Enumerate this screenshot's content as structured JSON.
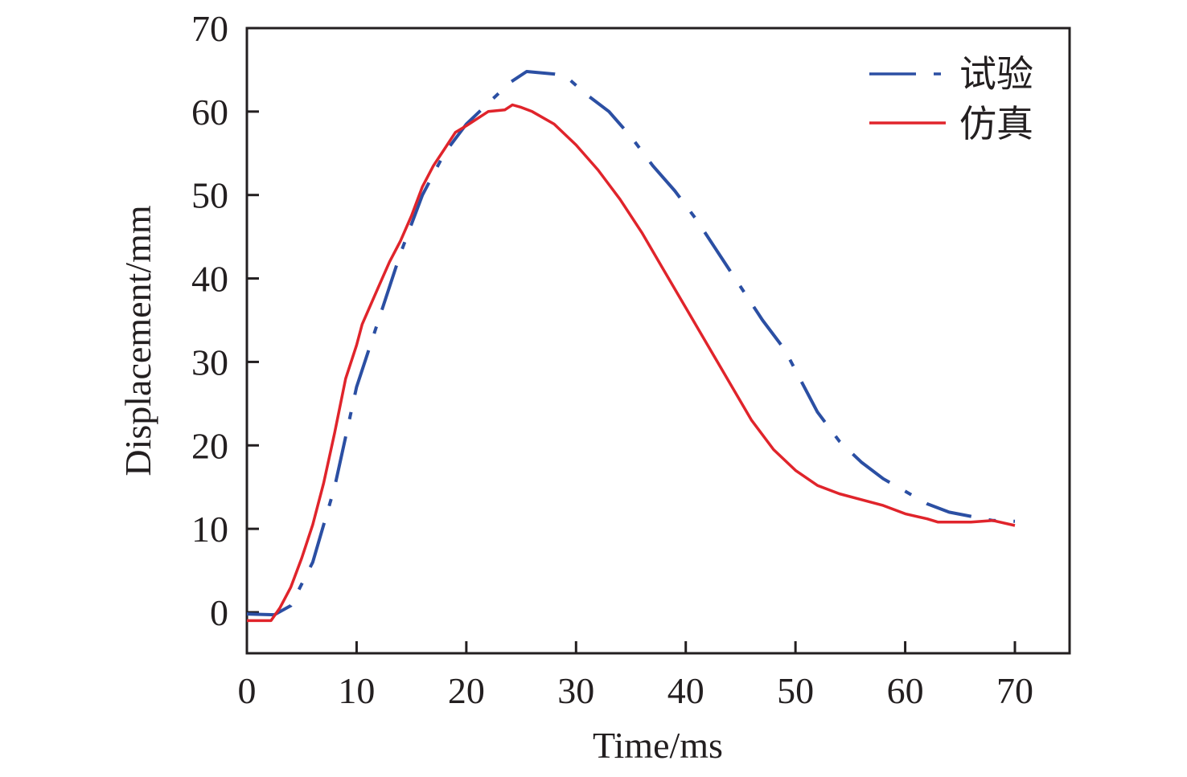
{
  "chart_data": {
    "type": "line",
    "title": "",
    "xlabel": "Time/ms",
    "ylabel": "Displacement/mm",
    "xlim": [
      0,
      75
    ],
    "ylim": [
      -5,
      70
    ],
    "x_ticks": [
      0,
      10,
      20,
      30,
      40,
      50,
      60,
      70
    ],
    "y_ticks": [
      0,
      10,
      20,
      30,
      40,
      50,
      60,
      70
    ],
    "grid": false,
    "legend_position": "top-right",
    "series": [
      {
        "name": "试验",
        "color": "#2b4fa3",
        "style": "dash-dot",
        "x": [
          0,
          2.5,
          4,
          6,
          8,
          10,
          12,
          14,
          16,
          18,
          20,
          22,
          24,
          25.5,
          28,
          29,
          31,
          33,
          35,
          37,
          39,
          41,
          43,
          45,
          47,
          49,
          50,
          52,
          54,
          56,
          58,
          60,
          62,
          64,
          66,
          68,
          70
        ],
        "y": [
          -0.2,
          -0.3,
          0.8,
          6,
          15,
          27,
          35,
          43,
          50,
          55,
          58.5,
          61,
          63.5,
          64.8,
          64.5,
          64.3,
          62,
          60,
          57,
          53.5,
          50.5,
          47,
          43,
          39,
          35,
          31.5,
          29,
          24,
          20.5,
          18,
          16,
          14.5,
          13,
          12,
          11.5,
          11,
          10.9
        ]
      },
      {
        "name": "仿真",
        "color": "#e0242b",
        "style": "solid",
        "x": [
          0,
          2.2,
          3,
          4,
          5,
          6,
          7,
          8,
          9,
          10,
          10.5,
          12,
          13,
          14,
          15,
          16,
          17,
          18,
          19,
          20,
          22,
          23.5,
          24.2,
          25,
          26,
          28,
          30,
          32,
          34,
          36,
          38,
          40,
          42,
          44,
          46,
          48,
          50,
          52,
          54,
          56,
          58,
          60,
          62,
          63,
          66,
          68,
          70
        ],
        "y": [
          -1,
          -1,
          0.5,
          3,
          6.5,
          10.5,
          15.5,
          21.5,
          28,
          32,
          34.5,
          39,
          42,
          44.5,
          47.5,
          51,
          53.5,
          55.5,
          57.5,
          58.3,
          60,
          60.2,
          60.8,
          60.5,
          60,
          58.5,
          56,
          53,
          49.5,
          45.5,
          41,
          36.5,
          32,
          27.5,
          23,
          19.5,
          17,
          15.2,
          14.2,
          13.5,
          12.8,
          11.8,
          11.2,
          10.8,
          10.8,
          11,
          10.4
        ]
      }
    ]
  }
}
